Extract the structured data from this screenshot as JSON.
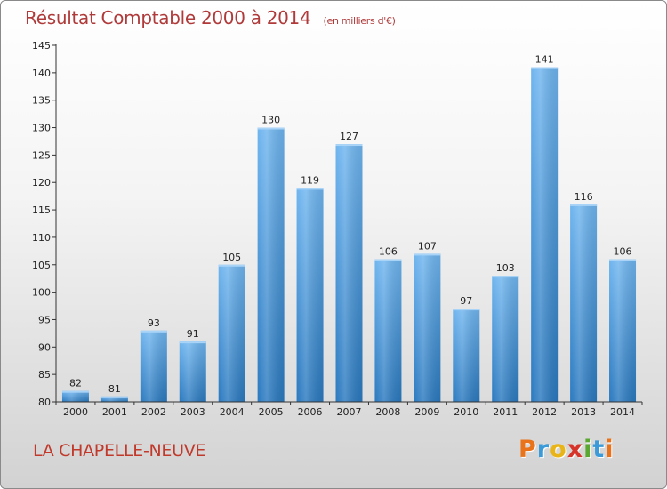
{
  "header": {
    "title": "Résultat Comptable 2000 à 2014",
    "subtitle": "(en milliers d'€)"
  },
  "footer": {
    "commune": "LA CHAPELLE-NEUVE",
    "logo_letters": [
      "P",
      "r",
      "o",
      "x",
      "i",
      "t",
      "i"
    ],
    "logo_colors": [
      "#e8731a",
      "#3a9bd8",
      "#e8b417",
      "#d6342a",
      "#5aa832",
      "#3a9bd8",
      "#e8731a"
    ]
  },
  "colors": {
    "bar_light": "#6fb5ef",
    "bar_dark": "#2a79bf",
    "axis": "#333333",
    "grid": "#cfcfcf",
    "title": "#b03a3a"
  },
  "chart_data": {
    "type": "bar",
    "title": "Résultat Comptable 2000 à 2014",
    "xlabel": "",
    "ylabel": "",
    "categories": [
      "2000",
      "2001",
      "2002",
      "2003",
      "2004",
      "2005",
      "2006",
      "2007",
      "2008",
      "2009",
      "2010",
      "2011",
      "2012",
      "2013",
      "2014"
    ],
    "values": [
      82,
      81,
      93,
      91,
      105,
      130,
      119,
      127,
      106,
      107,
      97,
      103,
      141,
      116,
      106
    ],
    "ylim": [
      80,
      145
    ],
    "yticks": [
      "80",
      "85",
      "90",
      "95",
      "100",
      "105",
      "110",
      "115",
      "120",
      "125",
      "130",
      "135",
      "140",
      "145"
    ],
    "grid": false,
    "legend": "none"
  }
}
